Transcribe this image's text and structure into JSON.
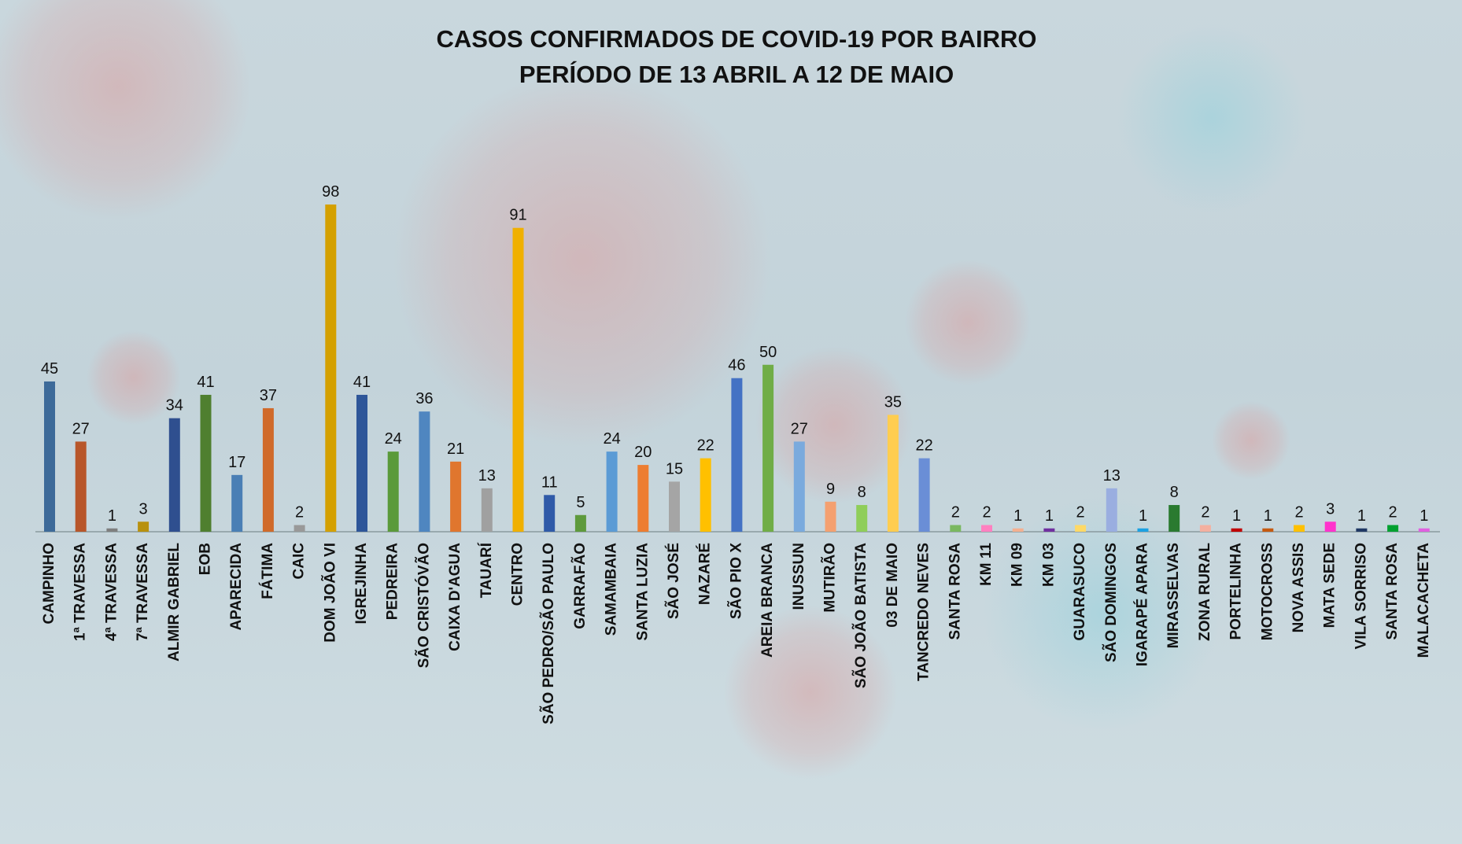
{
  "chart_data": {
    "type": "bar",
    "title": "CASOS CONFIRMADOS DE COVID-19 POR BAIRRO",
    "subtitle": "PERÍODO DE 13 ABRIL A 12 DE MAIO",
    "categories": [
      "CAMPINHO",
      "1ª TRAVESSA",
      "4ª TRAVESSA",
      "7ª TRAVESSA",
      "ALMIR GABRIEL",
      "EOB",
      "APARECIDA",
      "FÁTIMA",
      "CAIC",
      "DOM JOÃO VI",
      "IGREJINHA",
      "PEDREIRA",
      "SÃO CRISTÓVÃO",
      "CAIXA D'AGUA",
      "TAUARÍ",
      "CENTRO",
      "SÃO PEDRO/SÃO PAULO",
      "GARRAFÃO",
      "SAMAMBAIA",
      "SANTA LUZIA",
      "SÃO JOSÉ",
      "NAZARÉ",
      "SÃO PIO X",
      "AREIA BRANCA",
      "INUSSUN",
      "MUTIRÃO",
      "SÃO JOÃO BATISTA",
      "03 DE MAIO",
      "TANCREDO NEVES",
      "SANTA ROSA",
      "KM 11",
      "KM 09",
      "KM 03",
      "GUARASUCO",
      "SÃO DOMINGOS",
      "IGARAPÉ APARA",
      "MIRASSELVAS",
      "ZONA RURAL",
      "PORTELINHA",
      "MOTOCROSS",
      "NOVA ASSIS",
      "MATA SEDE",
      "VILA SORRISO",
      "SANTA ROSA",
      "MALACACHETA"
    ],
    "values": [
      45,
      27,
      1,
      3,
      34,
      41,
      17,
      37,
      2,
      98,
      41,
      24,
      36,
      21,
      13,
      91,
      11,
      5,
      24,
      20,
      15,
      22,
      46,
      50,
      27,
      9,
      8,
      35,
      22,
      2,
      2,
      1,
      1,
      2,
      13,
      1,
      8,
      2,
      1,
      1,
      2,
      3,
      1,
      2,
      1
    ],
    "colors": [
      "#3d6a99",
      "#b8562a",
      "#7f7f7f",
      "#b8910f",
      "#2f4f8f",
      "#4f7f2f",
      "#4a7fb5",
      "#d06a2a",
      "#999999",
      "#d4a000",
      "#2e5699",
      "#5a9a3a",
      "#4f86c0",
      "#e0762e",
      "#a0a0a0",
      "#f0b000",
      "#2f5aa8",
      "#5e9a3c",
      "#5b9bd5",
      "#ed7d31",
      "#a5a5a5",
      "#ffc000",
      "#4472c4",
      "#70ad47",
      "#7aaadd",
      "#f4a070",
      "#8fce5a",
      "#ffcd50",
      "#6a8ed6",
      "#7ab860",
      "#ff80c0",
      "#f4b090",
      "#7030a0",
      "#ffd966",
      "#9aaee0",
      "#1ba1e2",
      "#2a7a30",
      "#f4b0a0",
      "#c00000",
      "#c55a11",
      "#ffc000",
      "#ff33cc",
      "#1f3864",
      "#00a030",
      "#e060e0"
    ]
  }
}
